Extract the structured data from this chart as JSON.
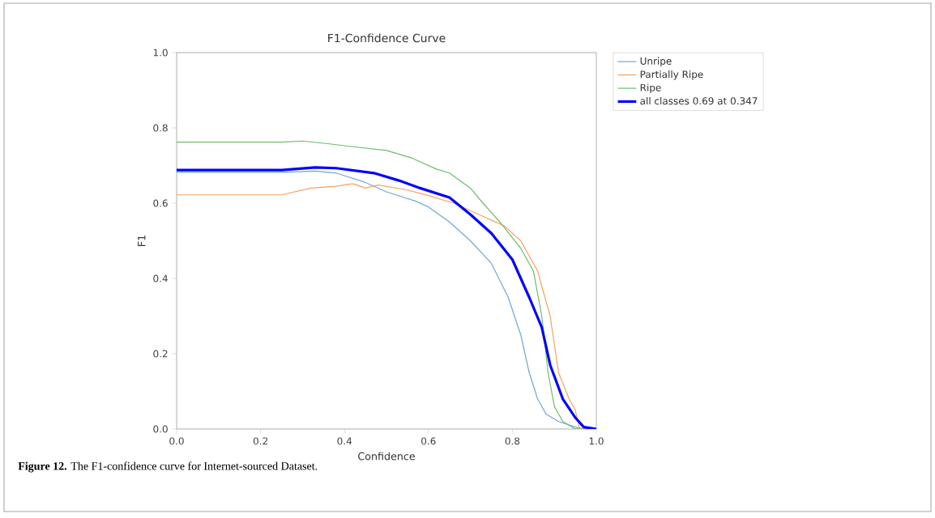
{
  "chart_data": {
    "type": "line",
    "title": "F1-Confidence Curve",
    "xlabel": "Confidence",
    "ylabel": "F1",
    "xlim": [
      0,
      1
    ],
    "ylim": [
      0,
      1
    ],
    "xticks": [
      {
        "value": 0,
        "label": "0.0"
      },
      0.2,
      0.4,
      0.6,
      0.8,
      {
        "value": 1,
        "label": "1.0"
      }
    ],
    "yticks": [
      {
        "value": 0,
        "label": "0.0"
      },
      0.2,
      0.4,
      0.6,
      0.8,
      {
        "value": 1,
        "label": "1.0"
      }
    ],
    "grid": false,
    "legend": "right",
    "line_style": "solid",
    "series": [
      {
        "name": "Unripe",
        "color": "#6fa8d6",
        "x": [
          0,
          0.25,
          0.33,
          0.38,
          0.45,
          0.5,
          0.57,
          0.6,
          0.65,
          0.7,
          0.75,
          0.79,
          0.82,
          0.84,
          0.86,
          0.88,
          0.91,
          0.95,
          0.97,
          1
        ],
        "values": [
          0.682,
          0.682,
          0.685,
          0.68,
          0.655,
          0.63,
          0.605,
          0.59,
          0.55,
          0.5,
          0.44,
          0.35,
          0.25,
          0.15,
          0.08,
          0.04,
          0.02,
          0.005,
          0,
          0
        ]
      },
      {
        "name": "Partially Ripe",
        "color": "#f5a15f",
        "x": [
          0,
          0.25,
          0.32,
          0.38,
          0.42,
          0.45,
          0.48,
          0.55,
          0.6,
          0.66,
          0.72,
          0.78,
          0.82,
          0.86,
          0.89,
          0.91,
          0.935,
          0.95,
          0.96,
          1
        ],
        "values": [
          0.622,
          0.622,
          0.64,
          0.645,
          0.652,
          0.64,
          0.648,
          0.635,
          0.62,
          0.6,
          0.57,
          0.54,
          0.5,
          0.42,
          0.3,
          0.15,
          0.08,
          0.05,
          0,
          0
        ]
      },
      {
        "name": "Ripe",
        "color": "#6dbb6d",
        "x": [
          0,
          0.25,
          0.3,
          0.36,
          0.42,
          0.5,
          0.56,
          0.62,
          0.65,
          0.7,
          0.73,
          0.77,
          0.82,
          0.85,
          0.87,
          0.885,
          0.9,
          0.92,
          0.95,
          1
        ],
        "values": [
          0.762,
          0.762,
          0.765,
          0.758,
          0.75,
          0.74,
          0.72,
          0.69,
          0.68,
          0.64,
          0.6,
          0.55,
          0.48,
          0.42,
          0.3,
          0.15,
          0.06,
          0.02,
          0,
          0
        ]
      },
      {
        "name": "all classes 0.69 at 0.347",
        "color": "#0000ff",
        "x": [
          0,
          0.25,
          0.33,
          0.38,
          0.47,
          0.53,
          0.58,
          0.65,
          0.7,
          0.75,
          0.8,
          0.84,
          0.87,
          0.89,
          0.92,
          0.95,
          0.97,
          1
        ],
        "values": [
          0.688,
          0.688,
          0.695,
          0.693,
          0.68,
          0.66,
          0.64,
          0.615,
          0.57,
          0.52,
          0.45,
          0.35,
          0.27,
          0.17,
          0.08,
          0.03,
          0.005,
          0
        ]
      }
    ],
    "annotations": [
      "**Figure 12.** The F1-confidence curve for Internet-sourced Dataset."
    ]
  }
}
